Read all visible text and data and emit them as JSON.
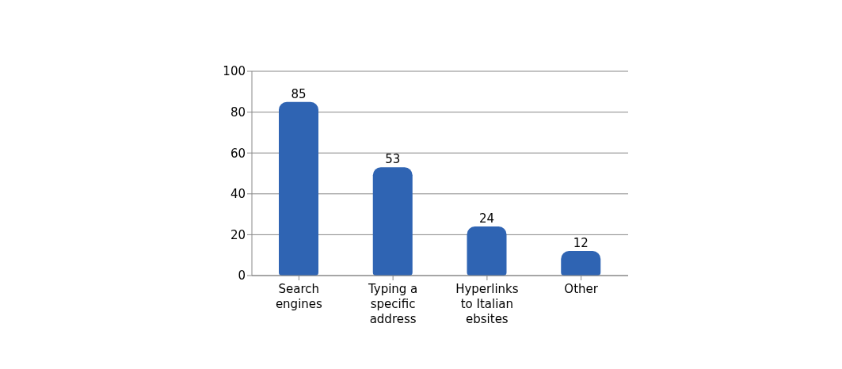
{
  "chart_data": {
    "type": "bar",
    "categories": [
      "Search engines",
      "Typing a specific address",
      "Hyperlinks to Italian ebsites",
      "Other"
    ],
    "values": [
      85,
      53,
      24,
      12
    ],
    "color": "#2f64b3",
    "ylim": [
      0,
      100
    ],
    "yticks": [
      0,
      20,
      40,
      60,
      80,
      100
    ],
    "grid": "y",
    "data_labels": true
  }
}
